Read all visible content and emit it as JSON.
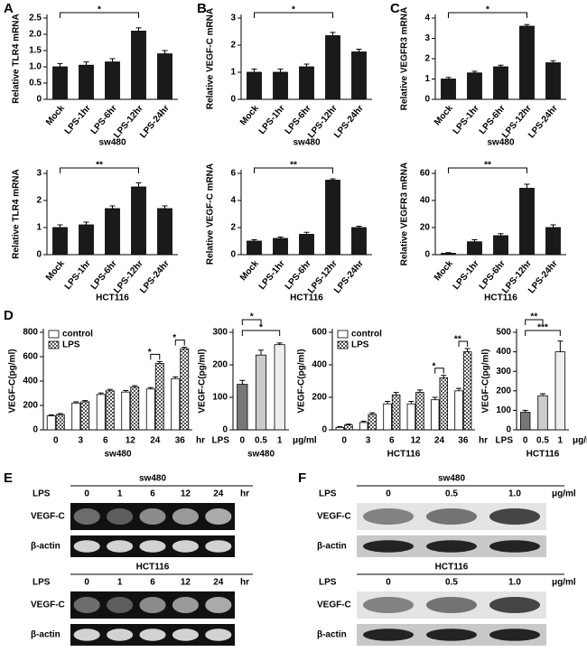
{
  "panels": [
    "A",
    "B",
    "C",
    "D",
    "E",
    "F"
  ],
  "chart_data": [
    {
      "type": "bar",
      "y_label": "Relative TLR4 mRNA",
      "x_label": "sw480",
      "categories": [
        "Mock",
        "LPS-1hr",
        "LPS-6hr",
        "LPS-12hr",
        "LPS-24hr"
      ],
      "values": [
        1.0,
        1.05,
        1.15,
        2.1,
        1.4
      ],
      "errors": [
        0.1,
        0.1,
        0.1,
        0.1,
        0.1
      ],
      "color": "#1a1a1a",
      "ylim": [
        0,
        2.5
      ],
      "yticks": [
        0,
        0.5,
        {
          "value": 1,
          "label": "1.0"
        },
        1.5,
        {
          "value": 2,
          "label": "2.0"
        },
        2.5
      ],
      "brackets": [
        {
          "from": "Mock",
          "to": "LPS-12hr",
          "label": "*"
        }
      ]
    },
    {
      "type": "bar",
      "y_label": "Relative VEGF-C mRNA",
      "x_label": "sw480",
      "categories": [
        "Mock",
        "LPS-1hr",
        "LPS-6hr",
        "LPS-12hr",
        "LPS-24hr"
      ],
      "values": [
        1.0,
        1.0,
        1.2,
        2.35,
        1.75
      ],
      "errors": [
        0.12,
        0.12,
        0.1,
        0.12,
        0.1
      ],
      "color": "#1a1a1a",
      "ylim": [
        0,
        3
      ],
      "yticks": [
        0,
        1,
        2,
        3
      ],
      "brackets": [
        {
          "from": "Mock",
          "to": "LPS-12hr",
          "label": "*"
        }
      ]
    },
    {
      "type": "bar",
      "y_label": "Relative VEGFR3 mRNA",
      "x_label": "sw480",
      "categories": [
        "Mock",
        "LPS-1hr",
        "LPS-6hr",
        "LPS-12hr",
        "LPS-24hr"
      ],
      "values": [
        1.0,
        1.3,
        1.6,
        3.6,
        1.8
      ],
      "errors": [
        0.08,
        0.08,
        0.08,
        0.08,
        0.1
      ],
      "color": "#1a1a1a",
      "ylim": [
        0,
        4
      ],
      "yticks": [
        0,
        1,
        2,
        3,
        4
      ],
      "brackets": [
        {
          "from": "Mock",
          "to": "LPS-12hr",
          "label": "*"
        }
      ]
    },
    {
      "type": "bar",
      "y_label": "Relative TLR4 mRNA",
      "x_label": "HCT116",
      "categories": [
        "Mock",
        "LPS-1hr",
        "LPS-6hr",
        "LPS-12hr",
        "LPS-24hr"
      ],
      "values": [
        1.0,
        1.1,
        1.7,
        2.5,
        1.7
      ],
      "errors": [
        0.1,
        0.1,
        0.1,
        0.15,
        0.1
      ],
      "color": "#1a1a1a",
      "ylim": [
        0,
        3
      ],
      "yticks": [
        0,
        1,
        2,
        3
      ],
      "brackets": [
        {
          "from": "Mock",
          "to": "LPS-12hr",
          "label": "**"
        }
      ]
    },
    {
      "type": "bar",
      "y_label": "Relative VEGF-C mRNA",
      "x_label": "HCT116",
      "categories": [
        "Mock",
        "LPS-1hr",
        "LPS-6hr",
        "LPS-12hr",
        "LPS-24hr"
      ],
      "values": [
        1.0,
        1.2,
        1.5,
        5.5,
        2.0
      ],
      "errors": [
        0.1,
        0.1,
        0.15,
        0.1,
        0.1
      ],
      "color": "#1a1a1a",
      "ylim": [
        0,
        6
      ],
      "yticks": [
        0,
        2,
        4,
        6
      ],
      "brackets": [
        {
          "from": "Mock",
          "to": "LPS-12hr",
          "label": "**"
        }
      ]
    },
    {
      "type": "bar",
      "y_label": "Relative VEGFR3 mRNA",
      "x_label": "HCT116",
      "categories": [
        "Mock",
        "LPS-1hr",
        "LPS-6hr",
        "LPS-12hr",
        "LPS-24hr"
      ],
      "values": [
        1,
        9.5,
        14,
        49,
        20
      ],
      "errors": [
        0.5,
        1.5,
        1.5,
        3,
        2
      ],
      "color": "#1a1a1a",
      "ylim": [
        0,
        60
      ],
      "yticks": [
        0,
        20,
        40,
        60
      ],
      "brackets": [
        {
          "from": "Mock",
          "to": "LPS-12hr",
          "label": "**"
        }
      ]
    },
    {
      "type": "grouped_bar",
      "y_label": "VEGF-C(pg/ml)",
      "x_label": "sw480",
      "x_unit": "hr",
      "categories": [
        "0",
        "3",
        "6",
        "12",
        "24",
        "36"
      ],
      "series": [
        {
          "name": "control",
          "color": "#ffffff",
          "values": [
            115,
            220,
            290,
            310,
            335,
            420
          ],
          "errors": [
            8,
            10,
            12,
            12,
            12,
            15
          ]
        },
        {
          "name": "LPS",
          "color": "#aaaaaa",
          "values": [
            125,
            230,
            320,
            350,
            545,
            665
          ],
          "errors": [
            8,
            10,
            12,
            12,
            15,
            12
          ]
        }
      ],
      "ylim": [
        0,
        800
      ],
      "yticks": [
        0,
        200,
        400,
        600,
        800
      ],
      "legend": "upper left",
      "brackets": [
        {
          "category": "24",
          "label": "*"
        },
        {
          "category": "36",
          "label": "*"
        }
      ]
    },
    {
      "type": "bar",
      "y_label": "VEGF-C(pg/ml)",
      "x_label": "sw480",
      "x_prefix": "LPS",
      "x_unit": "μg/ml",
      "categories": [
        "0",
        "0.5",
        "1"
      ],
      "values": [
        140,
        230,
        262
      ],
      "errors": [
        12,
        15,
        5
      ],
      "colors": [
        "#777777",
        "#cccccc",
        "#eeeeee"
      ],
      "ylim": [
        0,
        300
      ],
      "yticks": [
        0,
        100,
        200,
        300
      ],
      "brackets": [
        {
          "from": "0",
          "to": "0.5",
          "label": "*"
        },
        {
          "from": "0",
          "to": "1",
          "label": "*"
        }
      ]
    },
    {
      "type": "grouped_bar",
      "y_label": "VEGF-C(pg/ml)",
      "x_label": "HCT116",
      "x_unit": "hr",
      "categories": [
        "0",
        "3",
        "6",
        "12",
        "24",
        "36"
      ],
      "series": [
        {
          "name": "control",
          "color": "#ffffff",
          "values": [
            15,
            45,
            160,
            160,
            185,
            240
          ],
          "errors": [
            5,
            8,
            15,
            15,
            15,
            15
          ]
        },
        {
          "name": "LPS",
          "color": "#aaaaaa",
          "values": [
            30,
            95,
            215,
            230,
            320,
            480
          ],
          "errors": [
            5,
            10,
            15,
            15,
            15,
            20
          ]
        }
      ],
      "ylim": [
        0,
        600
      ],
      "yticks": [
        0,
        200,
        400,
        600
      ],
      "legend": "upper left",
      "brackets": [
        {
          "category": "24",
          "label": "*"
        },
        {
          "category": "36",
          "label": "**"
        }
      ]
    },
    {
      "type": "bar",
      "y_label": "VEGF-C(pg/ml)",
      "x_label": "HCT116",
      "x_prefix": "LPS",
      "x_unit": "μg/ml",
      "categories": [
        "0",
        "0.5",
        "1"
      ],
      "values": [
        90,
        175,
        400
      ],
      "errors": [
        10,
        10,
        55
      ],
      "colors": [
        "#777777",
        "#cccccc",
        "#eeeeee"
      ],
      "ylim": [
        0,
        500
      ],
      "yticks": [
        0,
        100,
        200,
        300,
        400,
        500
      ],
      "brackets": [
        {
          "from": "0",
          "to": "0.5",
          "label": "**"
        },
        {
          "from": "0",
          "to": "1",
          "label": "***"
        }
      ]
    }
  ],
  "gels": [
    {
      "title": "sw480",
      "treatment": "LPS",
      "lanes": [
        "0",
        "1",
        "6",
        "12",
        "24"
      ],
      "unit": "hr",
      "rows": [
        "VEGF-C",
        "β-actin"
      ]
    },
    {
      "title": "HCT116",
      "treatment": "LPS",
      "lanes": [
        "0",
        "1",
        "6",
        "12",
        "24"
      ],
      "unit": "hr",
      "rows": [
        "VEGF-C",
        "β-actin"
      ]
    },
    {
      "title": "sw480",
      "treatment": "LPS",
      "lanes": [
        "0",
        "0.5",
        "1.0"
      ],
      "unit": "μg/ml",
      "rows": [
        "VEGF-C",
        "β-actin"
      ]
    },
    {
      "title": "HCT116",
      "treatment": "LPS",
      "lanes": [
        "0",
        "0.5",
        "1.0"
      ],
      "unit": "μg/ml",
      "rows": [
        "VEGF-C",
        "β-actin"
      ]
    }
  ]
}
